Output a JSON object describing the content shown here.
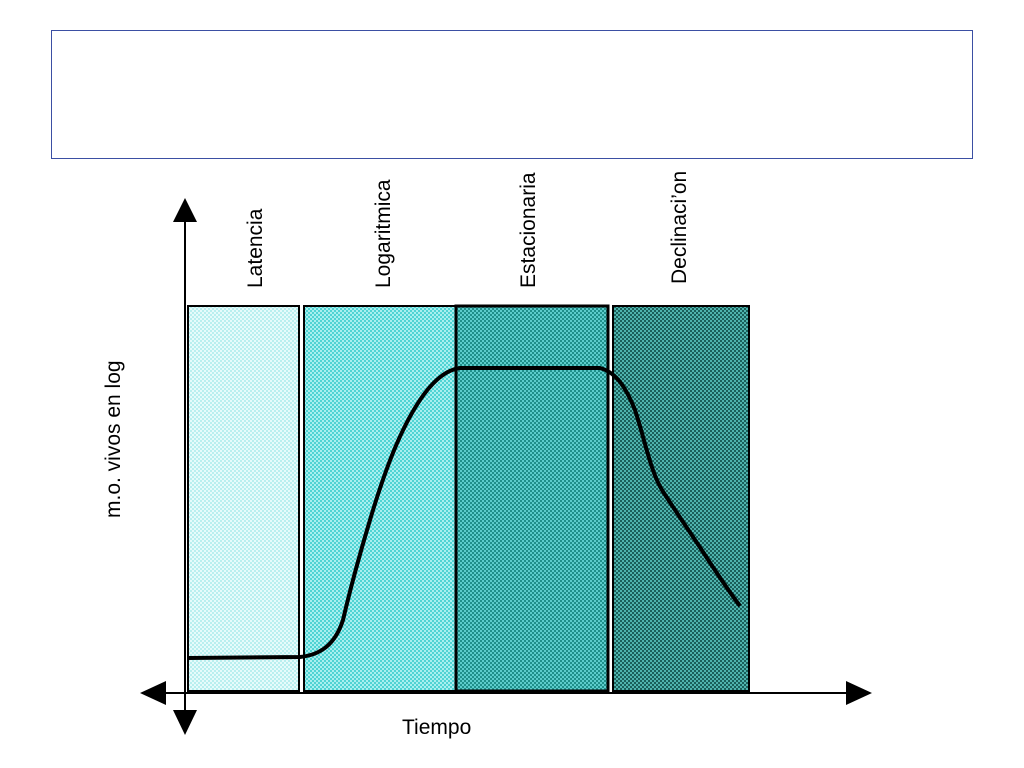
{
  "slide": {
    "title": ""
  },
  "diagram": {
    "y_axis_label": "m.o. vivos en log",
    "x_axis_label": "Tiempo",
    "phases": [
      {
        "name": "Latencia",
        "color": "#d4f6f6",
        "pattern": "dots-light"
      },
      {
        "name": "Logaritmica",
        "color": "#7fe3e3",
        "pattern": "dots-medium"
      },
      {
        "name": "Estacionaria",
        "color": "#3bb3b0",
        "pattern": "dots-dense"
      },
      {
        "name": "Declinaci’on",
        "color": "#2f8a84",
        "pattern": "dots-darker"
      }
    ],
    "curve_description": "growth curve",
    "axis_color": "#000000"
  }
}
